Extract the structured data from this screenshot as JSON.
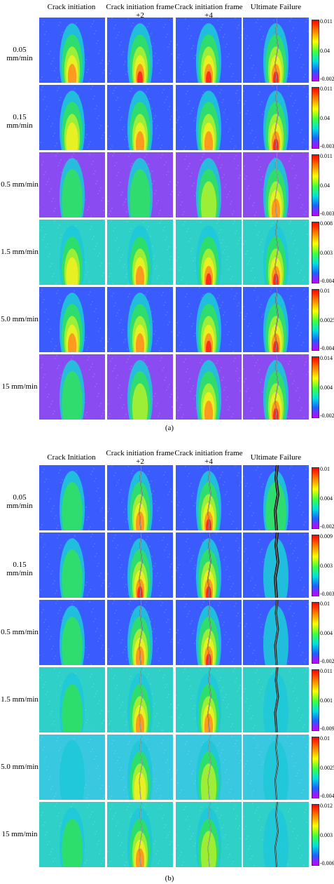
{
  "panel_a": {
    "label": "(a)",
    "columns": [
      "Crack initiation",
      "Crack initiation frame +2",
      "Crack initiation frame +4",
      "Ultimate Failure"
    ],
    "rows": [
      {
        "rate": "0.05 mm/min",
        "scale": [
          "0.011",
          "0.04",
          "-0.002"
        ]
      },
      {
        "rate": "0.15 mm/min",
        "scale": [
          "0.011",
          "0.04",
          "-0.003"
        ]
      },
      {
        "rate": "0.5 mm/min",
        "scale": [
          "0.011",
          "0.04",
          "-0.003"
        ]
      },
      {
        "rate": "1.5 mm/min",
        "scale": [
          "0.008",
          "0.003",
          "-0.004"
        ]
      },
      {
        "rate": "5.0 mm/min",
        "scale": [
          "0.01",
          "0.0025",
          "-0.004"
        ]
      },
      {
        "rate": "15 mm/min",
        "scale": [
          "0.014",
          "0.004",
          "-0.002"
        ]
      }
    ]
  },
  "panel_b": {
    "label": "(b)",
    "columns": [
      "Crack Initiation",
      "Crack initiation frame +2",
      "Crack initiation frame +4",
      "Ultimate Failure"
    ],
    "rows": [
      {
        "rate": "0.05 mm/min",
        "scale": [
          "0.01",
          "0.004",
          "-0.002"
        ]
      },
      {
        "rate": "0.15 mm/min",
        "scale": [
          "0.009",
          "0.003",
          "-0.003"
        ]
      },
      {
        "rate": "0.5 mm/min",
        "scale": [
          "0.01",
          "0.004",
          "-0.002"
        ]
      },
      {
        "rate": "1.5 mm/min",
        "scale": [
          "0.011",
          "0.001",
          "-0.009"
        ]
      },
      {
        "rate": "5.0 mm/min",
        "scale": [
          "0.01",
          "0.0025",
          "-0.004"
        ]
      },
      {
        "rate": "15 mm/min",
        "scale": [
          "0.012",
          "0.003",
          "-0.006"
        ]
      }
    ]
  },
  "colors": {
    "background_blue": "#3a5cff",
    "background_violet": "#8a4cf0",
    "background_teal": "#2fd0c8",
    "strain_green": "#30e060",
    "strain_yellow": "#f0f020",
    "strain_red": "#ff2020",
    "crack": "#111111"
  },
  "icons": {
    "colorbar": "strain-colorbar"
  }
}
